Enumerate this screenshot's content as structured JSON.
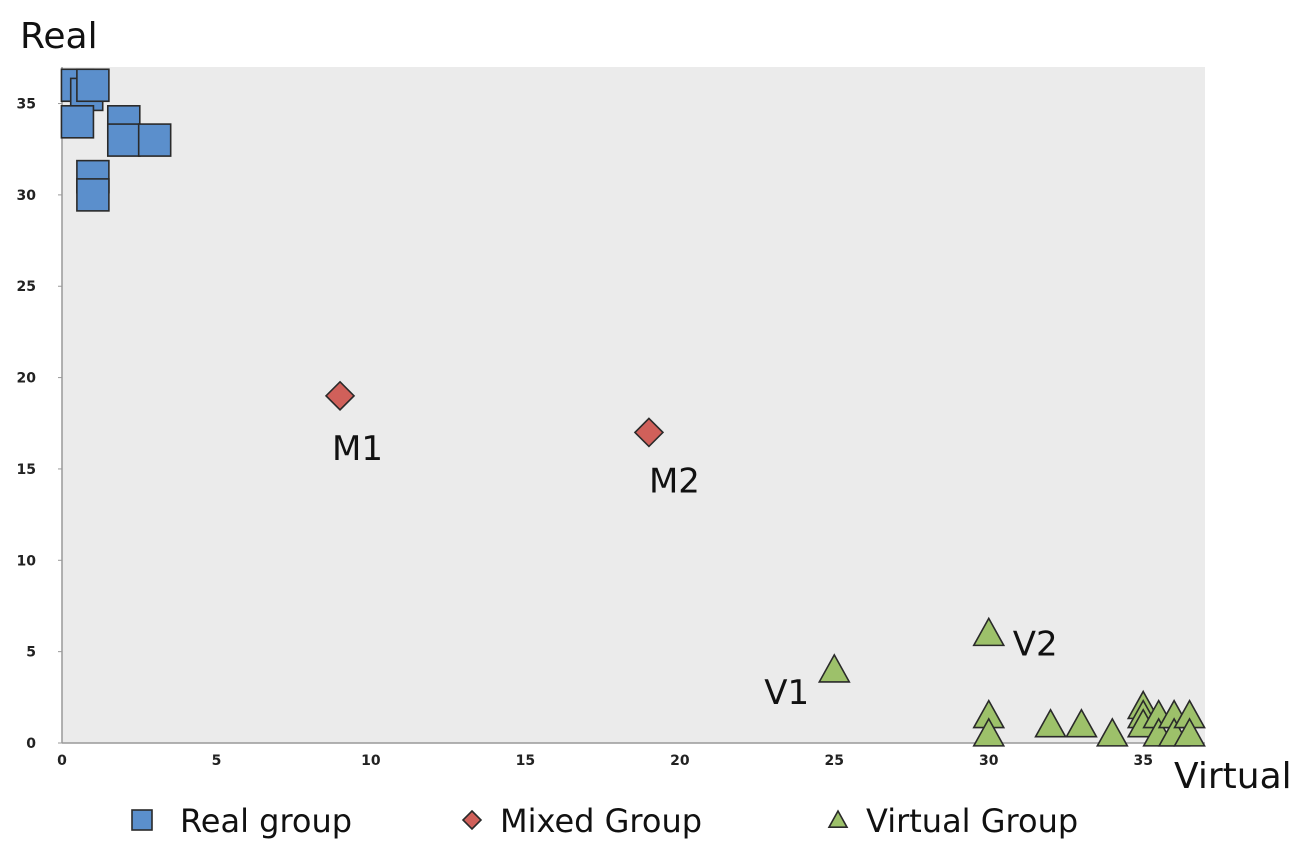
{
  "chart_data": {
    "type": "scatter",
    "xlabel": "Virtual",
    "ylabel": "Real",
    "xlim": [
      0,
      37
    ],
    "ylim": [
      0,
      37
    ],
    "xticks": [
      0,
      5,
      10,
      15,
      20,
      25,
      30,
      35
    ],
    "yticks": [
      0,
      5,
      10,
      15,
      20,
      25,
      30,
      35
    ],
    "grid": false,
    "legend_position": "bottom",
    "series": [
      {
        "name": "Real group",
        "marker": "square",
        "color": "#5b8fcc",
        "points": [
          {
            "x": 0.5,
            "y": 36
          },
          {
            "x": 0.8,
            "y": 35.5
          },
          {
            "x": 1,
            "y": 36
          },
          {
            "x": 0.5,
            "y": 34
          },
          {
            "x": 2,
            "y": 34
          },
          {
            "x": 2,
            "y": 33
          },
          {
            "x": 3,
            "y": 33
          },
          {
            "x": 1,
            "y": 31
          },
          {
            "x": 1,
            "y": 30
          }
        ]
      },
      {
        "name": "Mixed Group",
        "marker": "diamond",
        "color": "#d0605a",
        "points": [
          {
            "x": 9,
            "y": 19,
            "label": "M1"
          },
          {
            "x": 19,
            "y": 17,
            "label": "M2"
          }
        ]
      },
      {
        "name": "Virtual Group",
        "marker": "triangle",
        "color": "#9dc16a",
        "points": [
          {
            "x": 25,
            "y": 4,
            "label": "V1"
          },
          {
            "x": 30,
            "y": 6,
            "label": "V2"
          },
          {
            "x": 30,
            "y": 1.5
          },
          {
            "x": 30,
            "y": 0.5
          },
          {
            "x": 32,
            "y": 1
          },
          {
            "x": 33,
            "y": 1
          },
          {
            "x": 34,
            "y": 0.5
          },
          {
            "x": 35,
            "y": 2
          },
          {
            "x": 35,
            "y": 1.5
          },
          {
            "x": 35,
            "y": 1
          },
          {
            "x": 35.5,
            "y": 1.5
          },
          {
            "x": 35.5,
            "y": 0.5
          },
          {
            "x": 36,
            "y": 1.5
          },
          {
            "x": 36,
            "y": 0.5
          },
          {
            "x": 36.5,
            "y": 1.5
          },
          {
            "x": 36.5,
            "y": 0.5
          }
        ]
      }
    ]
  }
}
